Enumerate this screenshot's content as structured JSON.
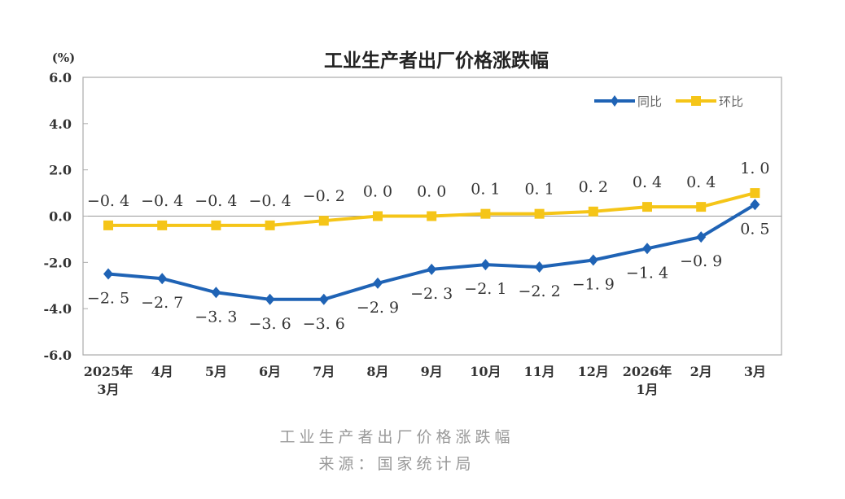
{
  "chart_data": {
    "type": "line",
    "title": "工业生产者出厂价格涨跌幅",
    "ylabel": "(%)",
    "ylim": [
      -6,
      6
    ],
    "yticks": [
      "6.0",
      "4.0",
      "2.0",
      "0.0",
      "-2.0",
      "-4.0",
      "-6.0"
    ],
    "categories": [
      [
        "2025年",
        "3月"
      ],
      [
        "4月"
      ],
      [
        "5月"
      ],
      [
        "6月"
      ],
      [
        "7月"
      ],
      [
        "8月"
      ],
      [
        "9月"
      ],
      [
        "10月"
      ],
      [
        "11月"
      ],
      [
        "12月"
      ],
      [
        "2026年",
        "1月"
      ],
      [
        "2月"
      ],
      [
        "3月"
      ]
    ],
    "series": [
      {
        "name": "同比",
        "color": "#1f63b5",
        "marker": "diamond",
        "values": [
          -2.5,
          -2.7,
          -3.3,
          -3.6,
          -3.6,
          -2.9,
          -2.3,
          -2.1,
          -2.2,
          -1.9,
          -1.4,
          -0.9,
          0.5
        ],
        "labels": [
          "-2.5",
          "-2.7",
          "-3.3",
          "-3.6",
          "-3.6",
          "-2.9",
          "-2.3",
          "-2.1",
          "-2.2",
          "-1.9",
          "-1.4",
          "-0.9",
          "0.5"
        ]
      },
      {
        "name": "环比",
        "color": "#f5c518",
        "marker": "square",
        "values": [
          -0.4,
          -0.4,
          -0.4,
          -0.4,
          -0.2,
          0.0,
          0.0,
          0.1,
          0.1,
          0.2,
          0.4,
          0.4,
          1.0
        ],
        "labels": [
          "-0.4",
          "-0.4",
          "-0.4",
          "-0.4",
          "-0.2",
          "0.0",
          "0.0",
          "0.1",
          "0.1",
          "0.2",
          "0.4",
          "0.4",
          "1.0"
        ]
      }
    ],
    "legend": "top-right",
    "grid": false
  },
  "caption": {
    "title": "工业生产者出厂价格涨跌幅",
    "source": "来源：国家统计局"
  }
}
